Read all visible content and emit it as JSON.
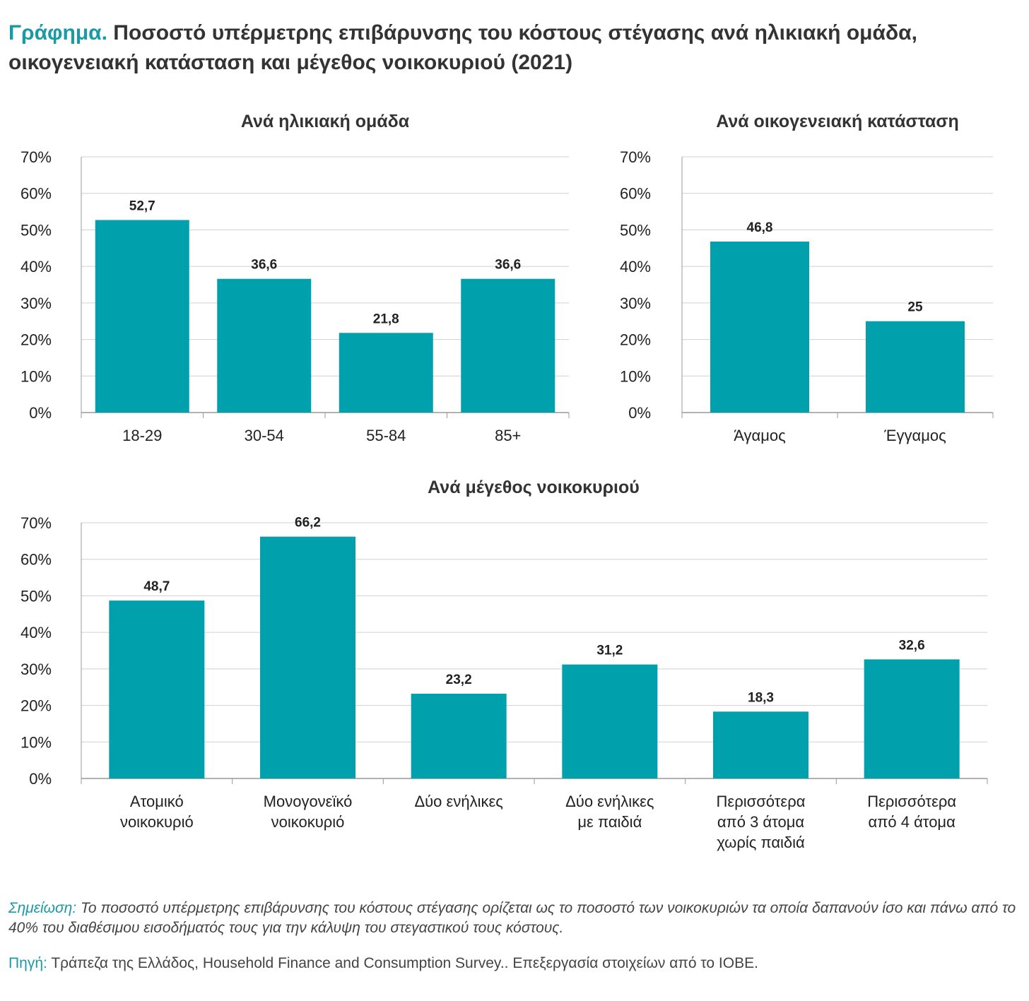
{
  "title": {
    "lead": "Γράφημα.",
    "text": "Ποσοστό υπέρμετρης επιβάρυνσης του κόστους στέγασης ανά ηλικιακή ομάδα, οικογενειακή κατάσταση και μέγεθος νοικοκυριού (2021)"
  },
  "colors": {
    "bar": "#00a0ad",
    "accent": "#1a9aa4",
    "grid": "#d0d0d0"
  },
  "chart_data": [
    {
      "type": "bar",
      "title": "Ανά ηλικιακή ομάδα",
      "categories": [
        [
          "18-29"
        ],
        [
          "30-54"
        ],
        [
          "55-84"
        ],
        [
          "85+"
        ]
      ],
      "values": [
        52.7,
        36.6,
        21.8,
        36.6
      ],
      "value_labels": [
        "52,7",
        "36,6",
        "21,8",
        "36,6"
      ],
      "yticks": [
        "0%",
        "10%",
        "20%",
        "30%",
        "40%",
        "50%",
        "60%",
        "70%"
      ],
      "ylim": [
        0,
        70
      ],
      "grid": true
    },
    {
      "type": "bar",
      "title": "Ανά οικογενειακή κατάσταση",
      "categories": [
        [
          "Άγαμος"
        ],
        [
          "Έγγαμος"
        ]
      ],
      "values": [
        46.8,
        25
      ],
      "value_labels": [
        "46,8",
        "25"
      ],
      "yticks": [
        "0%",
        "10%",
        "20%",
        "30%",
        "40%",
        "50%",
        "60%",
        "70%"
      ],
      "ylim": [
        0,
        70
      ],
      "grid": true
    },
    {
      "type": "bar",
      "title": "Ανά μέγεθος νοικοκυριού",
      "categories": [
        [
          "Ατομικό",
          "νοικοκυριό"
        ],
        [
          "Μονογονεϊκό",
          "νοικοκυριό"
        ],
        [
          "Δύο ενήλικες"
        ],
        [
          "Δύο ενήλικες",
          "με παιδιά"
        ],
        [
          "Περισσότερα",
          "από 3 άτομα",
          "χωρίς παιδιά"
        ],
        [
          "Περισσότερα",
          "από 4 άτομα"
        ]
      ],
      "values": [
        48.7,
        66.2,
        23.2,
        31.2,
        18.3,
        32.6
      ],
      "value_labels": [
        "48,7",
        "66,2",
        "23,2",
        "31,2",
        "18,3",
        "32,6"
      ],
      "yticks": [
        "0%",
        "10%",
        "20%",
        "30%",
        "40%",
        "50%",
        "60%",
        "70%"
      ],
      "ylim": [
        0,
        70
      ],
      "grid": true
    }
  ],
  "note": {
    "label": "Σημείωση:",
    "text": " Το ποσοστό υπέρμετρης επιβάρυνσης του κόστους στέγασης ορίζεται ως το ποσοστό των νοικοκυριών τα οποία δαπανούν ίσο και πάνω από το 40% του διαθέσιμου εισοδήματός τους για την κάλυψη του στεγαστικού τους κόστους."
  },
  "source": {
    "label": "Πηγή:",
    "text": " Τράπεζα της Ελλάδος, Household Finance and Consumption Survey.. Επεξεργασία στοιχείων από το ΙΟΒΕ."
  }
}
